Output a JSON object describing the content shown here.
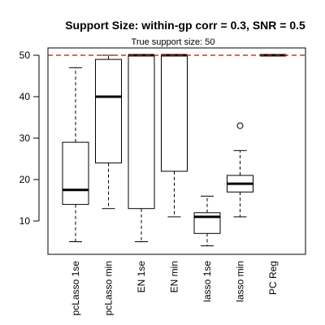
{
  "chart_data": {
    "type": "box",
    "title": "Support Size: within-gp corr = 0.3, SNR = 0.5",
    "subtitle": "True support size: 50",
    "reference_line": {
      "value": 50,
      "color": "#dd0000",
      "style": "dashed"
    },
    "ylim": [
      3,
      52
    ],
    "yticks": [
      10,
      20,
      30,
      40,
      50
    ],
    "categories": [
      "pcLasso 1se",
      "pcLasso min",
      "EN 1se",
      "EN min",
      "lasso 1se",
      "lasso min",
      "PC Reg"
    ],
    "boxes": [
      {
        "min": 5,
        "q1": 14,
        "median": 17.5,
        "q3": 29,
        "max": 47,
        "outliers": []
      },
      {
        "min": 13,
        "q1": 24,
        "median": 40,
        "q3": 49,
        "max": 50,
        "outliers": []
      },
      {
        "min": 5,
        "q1": 13,
        "median": 50,
        "q3": 50,
        "max": 50,
        "outliers": []
      },
      {
        "min": 11,
        "q1": 22,
        "median": 50,
        "q3": 50,
        "max": 50,
        "outliers": []
      },
      {
        "min": 4,
        "q1": 7,
        "median": 11,
        "q3": 12,
        "max": 16,
        "outliers": []
      },
      {
        "min": 11,
        "q1": 17,
        "median": 19,
        "q3": 21,
        "max": 27,
        "outliers": [
          33
        ]
      },
      {
        "min": 50,
        "q1": 50,
        "median": 50,
        "q3": 50,
        "max": 50,
        "outliers": []
      }
    ]
  }
}
